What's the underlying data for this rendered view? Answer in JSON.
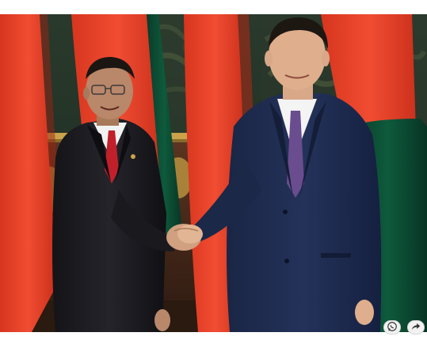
{
  "photo": {
    "subject": "handshake",
    "palette": {
      "flag_red": "#e8432a",
      "flag_green": "#0b4d36",
      "background_green": "#1f3a2c",
      "gold_trim": "#caa24a",
      "wood": "#4a2a18",
      "navy_suit": "#1d2a4a",
      "charcoal_suit": "#1b1b1f",
      "red_tie": "#c1202a",
      "purple_tie": "#6a4d8e"
    }
  },
  "actions": {
    "items": [
      {
        "icon": "whatsapp-icon"
      },
      {
        "icon": "share-icon"
      }
    ]
  }
}
